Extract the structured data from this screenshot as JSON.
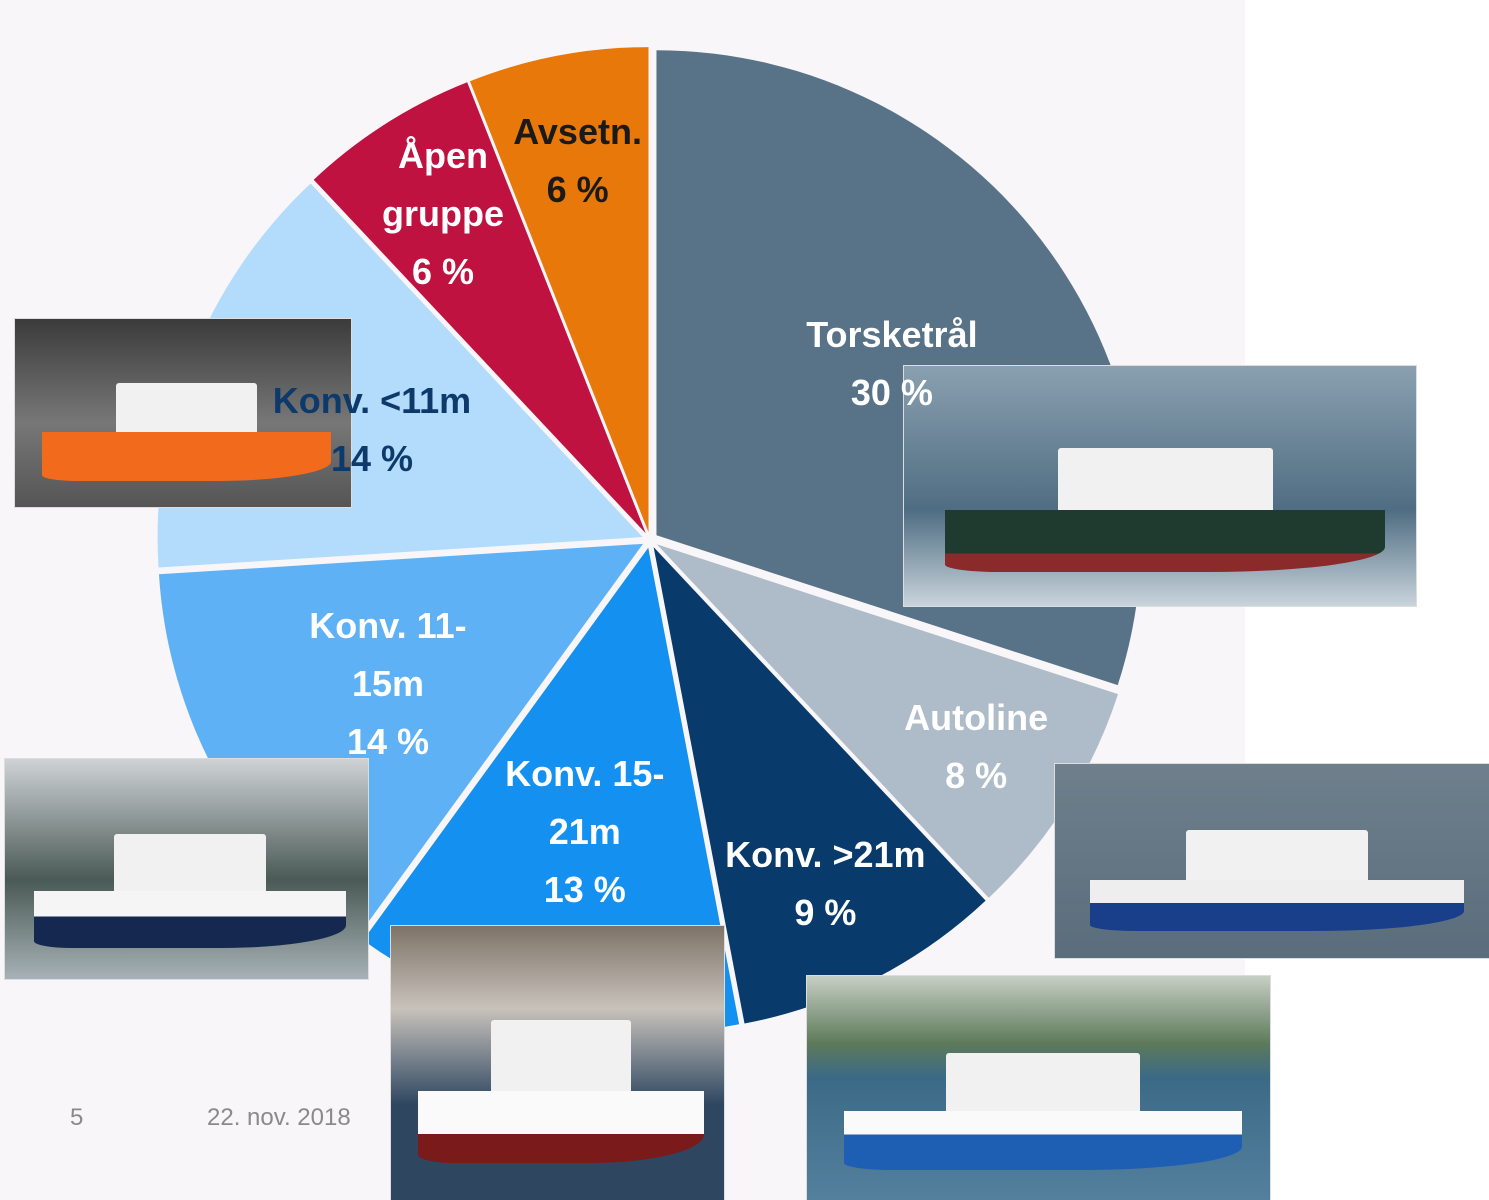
{
  "chart_data": {
    "type": "pie",
    "categories": [
      "Torsketrål",
      "Autoline",
      "Konv. >21m",
      "Konv. 15-21m",
      "Konv. 11-15m",
      "Konv. <11m",
      "Åpen gruppe",
      "Avsetn."
    ],
    "values": [
      30,
      8,
      9,
      13,
      14,
      14,
      6,
      6
    ],
    "value_labels": [
      "30 %",
      "8 %",
      "9 %",
      "13 %",
      "14 %",
      "14 %",
      "6 %",
      "6 %"
    ],
    "colors": [
      "#587387",
      "#adbcc8",
      "#083a6b",
      "#1390f0",
      "#5fb1f5",
      "#b3dbfb",
      "#bf1240",
      "#e8780a"
    ],
    "label_colors": [
      "#ffffff",
      "#ffffff",
      "#ffffff",
      "#ffffff",
      "#ffffff",
      "#0d3a6b",
      "#ffffff",
      "#1a1a1a"
    ]
  },
  "footer": {
    "page": "5",
    "date": "22. nov. 2018"
  }
}
